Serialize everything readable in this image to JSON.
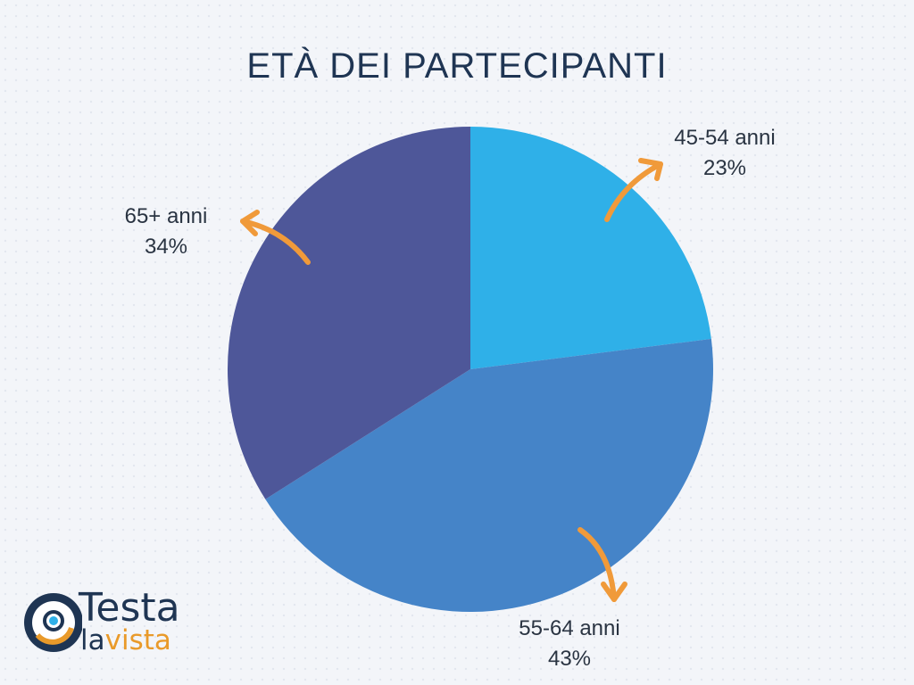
{
  "chart_data": {
    "type": "pie",
    "title": "ETÀ DEI PARTECIPANTI",
    "slices": [
      {
        "label": "45-54 anni",
        "value": 23,
        "value_label": "23%",
        "color": "#2fb0e8"
      },
      {
        "label": "55-64 anni",
        "value": 43,
        "value_label": "43%",
        "color": "#4584c8"
      },
      {
        "label": "65+ anni",
        "value": 34,
        "value_label": "34%",
        "color": "#4e5799"
      }
    ],
    "arrow_color": "#f09a3a"
  },
  "logo": {
    "word1": "Testa",
    "word2a": "la",
    "word2b": "vista",
    "colors": {
      "navy": "#1f3553",
      "orange": "#e99a2a",
      "cyan": "#2fb0e8"
    }
  }
}
